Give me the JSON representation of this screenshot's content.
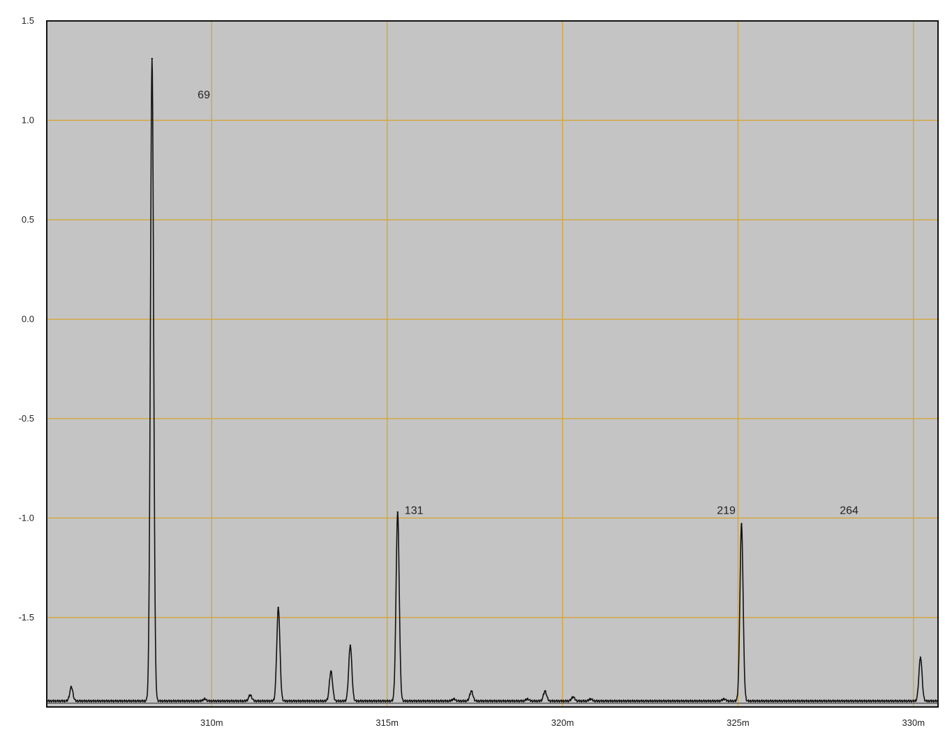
{
  "chart_data": {
    "type": "line",
    "title": "",
    "xlabel": "",
    "ylabel": "",
    "x_unit": "m",
    "xlim": [
      305.3,
      330.7
    ],
    "ylim": [
      -1.95,
      1.5
    ],
    "grid": true,
    "legend": "none",
    "x_ticks": [
      310,
      315,
      320,
      325,
      330
    ],
    "x_tick_labels": [
      "310m",
      "315m",
      "320m",
      "325m",
      "330m"
    ],
    "y_ticks": [
      1.5,
      1.0,
      0.5,
      0.0,
      -0.5,
      -1.0,
      -1.5
    ],
    "y_tick_labels": [
      "1.5",
      "1.0",
      "0.5",
      "0.0",
      "-0.5",
      "-1.0",
      "-1.5"
    ],
    "baseline": -1.92,
    "peaks": [
      {
        "x": 306.0,
        "y": -1.85
      },
      {
        "x": 308.3,
        "y": 1.31
      },
      {
        "x": 309.8,
        "y": -1.91
      },
      {
        "x": 311.1,
        "y": -1.89
      },
      {
        "x": 311.9,
        "y": -1.45
      },
      {
        "x": 313.4,
        "y": -1.77
      },
      {
        "x": 313.95,
        "y": -1.64
      },
      {
        "x": 315.3,
        "y": -0.97
      },
      {
        "x": 316.9,
        "y": -1.91
      },
      {
        "x": 317.4,
        "y": -1.87
      },
      {
        "x": 319.0,
        "y": -1.91
      },
      {
        "x": 319.5,
        "y": -1.87
      },
      {
        "x": 320.3,
        "y": -1.9
      },
      {
        "x": 320.8,
        "y": -1.91
      },
      {
        "x": 324.6,
        "y": -1.91
      },
      {
        "x": 325.1,
        "y": -1.03
      },
      {
        "x": 330.2,
        "y": -1.7
      }
    ],
    "annotations": [
      {
        "text": "69",
        "x": 309.6,
        "y": 1.11
      },
      {
        "text": "131",
        "x": 315.5,
        "y": -0.98
      },
      {
        "text": "219",
        "x": 324.4,
        "y": -0.98
      },
      {
        "text": "264",
        "x": 327.9,
        "y": -0.98
      }
    ],
    "colors": {
      "plot_background": "#c4c4c4",
      "grid": "#d4a63a",
      "trace": "#111111",
      "frame": "#101010"
    }
  }
}
